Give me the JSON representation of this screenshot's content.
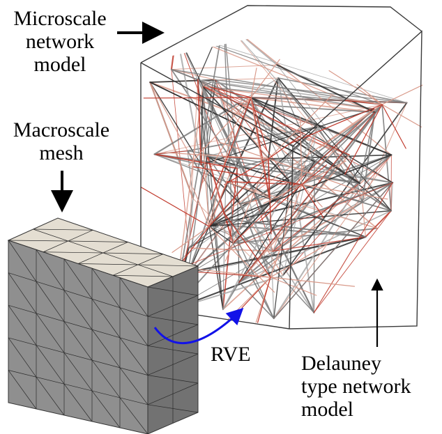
{
  "labels": {
    "microscale": [
      "Microscale",
      "network",
      "model"
    ],
    "macroscale": [
      "Macroscale",
      "mesh"
    ],
    "rve": "RVE",
    "delaunay": [
      "Delauney",
      "type network",
      "model"
    ]
  },
  "colors": {
    "box_edges": "#3a3a3a",
    "fiber_gray": "#7a7a7a",
    "fiber_dark": "#2b2b2b",
    "fiber_red": "#c0392b",
    "fiber_pink": "#d99a8a",
    "mesh_top": "#e4ded2",
    "mesh_front": "#8f8f8f",
    "mesh_side": "#6f6f6f",
    "rve_arrow": "#1212e8"
  }
}
